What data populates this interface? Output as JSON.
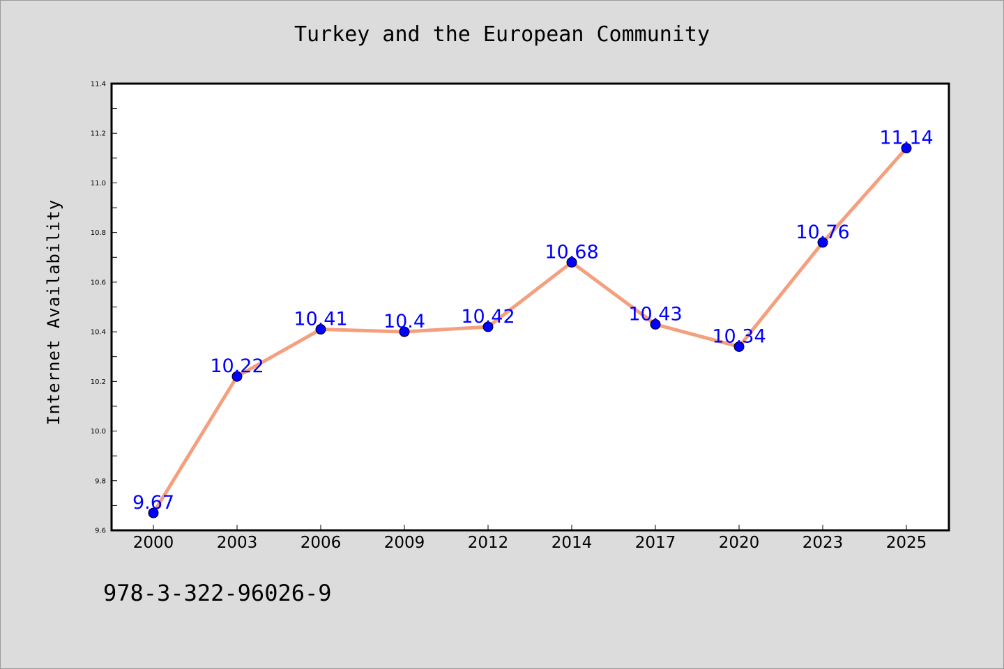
{
  "footnote": "978-3-322-96026-9",
  "colors": {
    "background": "#dcdcdc",
    "plot_background": "#ffffff",
    "line": "#f4a07f",
    "marker": "#0000ff",
    "data_label": "#0000ff"
  },
  "chart_data": {
    "type": "line",
    "title": "Turkey and the European Community",
    "xlabel": "",
    "ylabel": "Internet Availability",
    "categories": [
      "2000",
      "2003",
      "2006",
      "2009",
      "2012",
      "2014",
      "2017",
      "2020",
      "2023",
      "2025"
    ],
    "series": [
      {
        "values": [
          9.67,
          10.22,
          10.41,
          10.4,
          10.42,
          10.68,
          10.43,
          10.34,
          10.76,
          11.14
        ],
        "labels": [
          "9.67",
          "10.22",
          "10.41",
          "10.4",
          "10.42",
          "10.68",
          "10.43",
          "10.34",
          "10.76",
          "11.14"
        ]
      }
    ],
    "ylim": [
      9.6,
      11.4
    ],
    "yticks": [
      "9.6",
      "9.8",
      "10.0",
      "10.2",
      "10.4",
      "10.6",
      "10.8",
      "11.0",
      "11.2",
      "11.4"
    ],
    "grid": false,
    "legend": "none"
  }
}
